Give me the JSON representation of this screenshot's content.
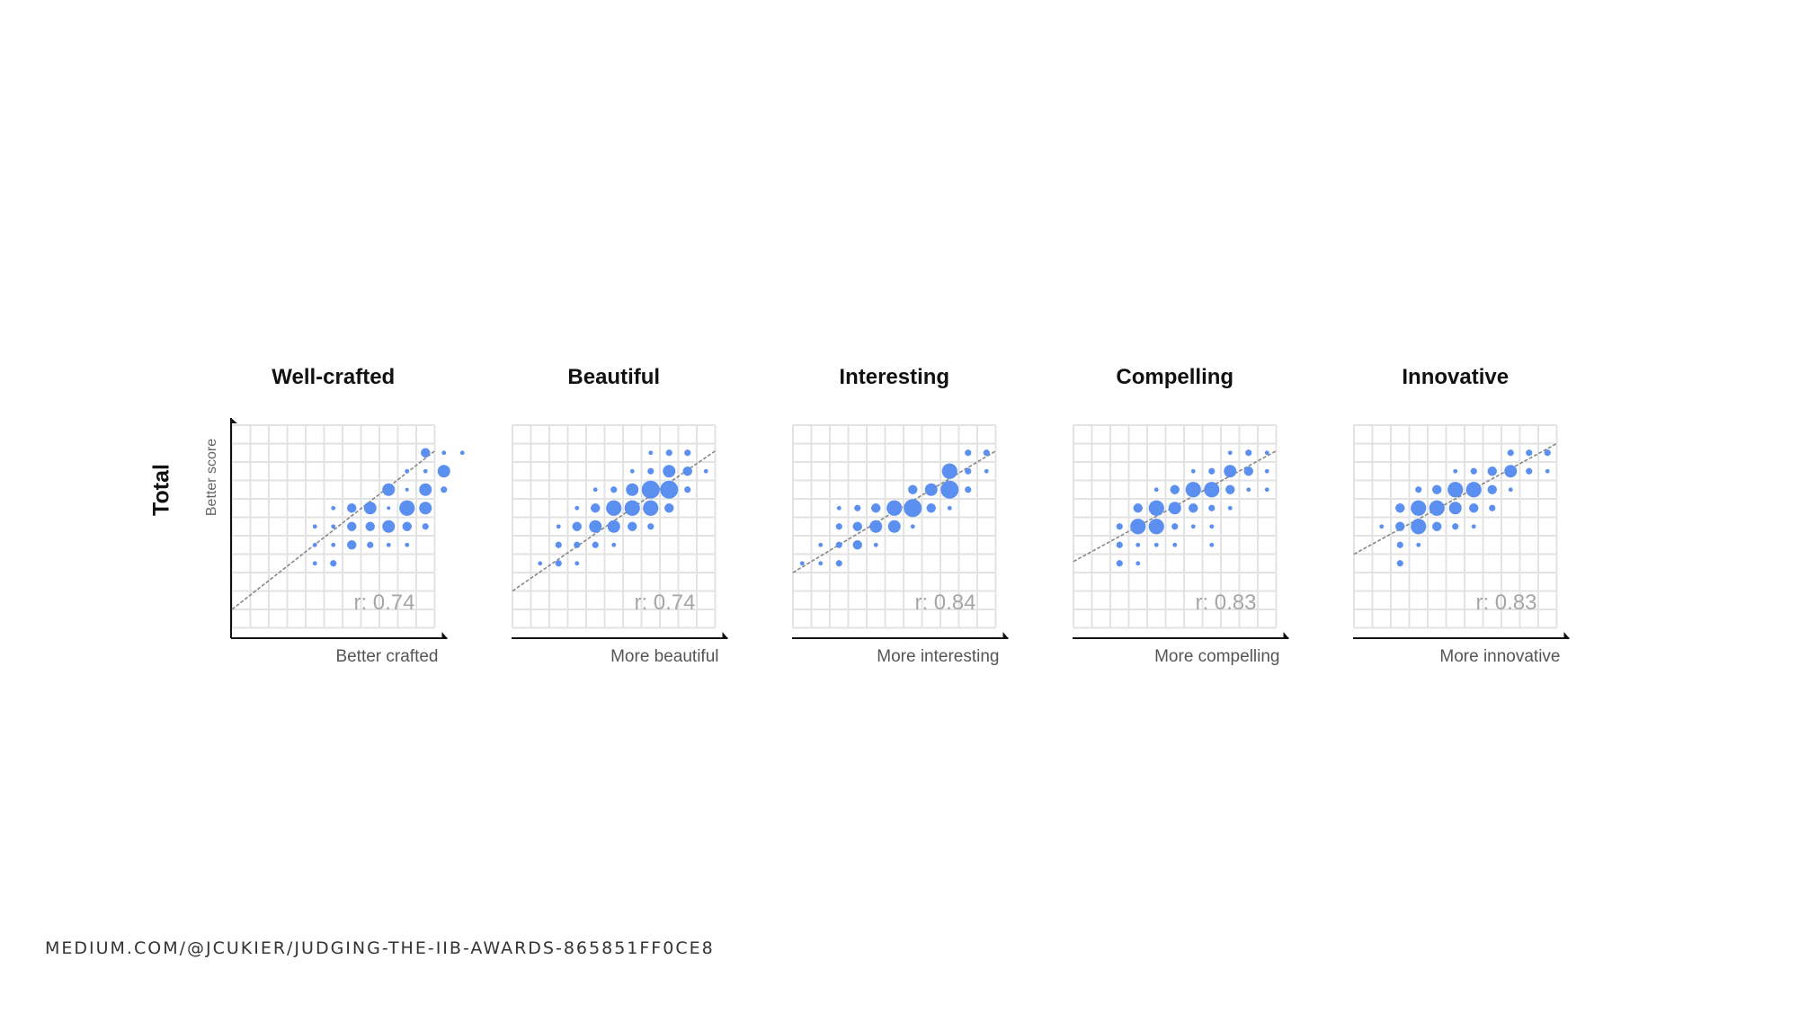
{
  "row_label": "Total",
  "source": "MEDIUM.COM/@JCUKIER/JUDGING-THE-IIB-AWARDS-865851FF0CE8",
  "colors": {
    "dot": "#5b8ff0",
    "grid": "#e3e3e3",
    "trend": "#888888",
    "axis": "#111111"
  },
  "chart_data": [
    {
      "type": "scatter",
      "title": "Well-crafted",
      "xlabel": "Better crafted",
      "ylabel": "Better score",
      "annotation": "r: 0.74",
      "grid": true,
      "trend": [
        [
          0.5,
          1.5
        ],
        [
          11.5,
          10.1
        ]
      ],
      "points": [
        [
          11,
          10,
          3
        ],
        [
          12,
          10,
          1
        ],
        [
          13,
          10,
          1
        ],
        [
          10,
          9,
          1
        ],
        [
          11,
          9,
          1
        ],
        [
          12,
          9,
          4
        ],
        [
          9,
          8,
          4
        ],
        [
          10,
          8,
          7
        ],
        [
          11,
          8,
          4
        ],
        [
          12,
          8,
          2
        ],
        [
          6,
          7,
          1
        ],
        [
          7,
          7,
          3
        ],
        [
          8,
          7,
          4
        ],
        [
          9,
          7,
          7
        ],
        [
          10,
          7,
          5
        ],
        [
          11,
          7,
          4
        ],
        [
          5,
          6,
          1
        ],
        [
          6,
          6,
          1
        ],
        [
          7,
          6,
          3
        ],
        [
          8,
          6,
          3
        ],
        [
          9,
          6,
          4
        ],
        [
          10,
          6,
          3
        ],
        [
          11,
          6,
          2
        ],
        [
          5,
          5,
          1
        ],
        [
          6,
          5,
          1
        ],
        [
          7,
          5,
          3
        ],
        [
          8,
          5,
          2
        ],
        [
          9,
          5,
          1
        ],
        [
          10,
          5,
          1
        ],
        [
          5,
          4,
          1
        ],
        [
          6,
          4,
          2
        ]
      ]
    },
    {
      "type": "scatter",
      "title": "Beautiful",
      "xlabel": "More beautiful",
      "ylabel": "",
      "annotation": "r: 0.74",
      "grid": true,
      "trend": [
        [
          0.5,
          2.5
        ],
        [
          11.5,
          10.1
        ]
      ],
      "points": [
        [
          8,
          10,
          1
        ],
        [
          9,
          10,
          2
        ],
        [
          10,
          10,
          2
        ],
        [
          7,
          9,
          1
        ],
        [
          8,
          9,
          2
        ],
        [
          9,
          9,
          4
        ],
        [
          10,
          9,
          3
        ],
        [
          11,
          9,
          1
        ],
        [
          5,
          8,
          1
        ],
        [
          6,
          8,
          2
        ],
        [
          7,
          8,
          4
        ],
        [
          8,
          8,
          6
        ],
        [
          9,
          8,
          6
        ],
        [
          10,
          8,
          2
        ],
        [
          4,
          7,
          1
        ],
        [
          5,
          7,
          3
        ],
        [
          6,
          7,
          5
        ],
        [
          7,
          7,
          5
        ],
        [
          8,
          7,
          5
        ],
        [
          9,
          7,
          3
        ],
        [
          3,
          6,
          1
        ],
        [
          4,
          6,
          3
        ],
        [
          5,
          6,
          4
        ],
        [
          6,
          6,
          4
        ],
        [
          7,
          6,
          3
        ],
        [
          8,
          6,
          2
        ],
        [
          3,
          5,
          2
        ],
        [
          4,
          5,
          2
        ],
        [
          5,
          5,
          2
        ],
        [
          6,
          5,
          1
        ],
        [
          2,
          4,
          1
        ],
        [
          3,
          4,
          2
        ],
        [
          4,
          4,
          1
        ]
      ]
    },
    {
      "type": "scatter",
      "title": "Interesting",
      "xlabel": "More interesting",
      "ylabel": "",
      "annotation": "r: 0.84",
      "grid": true,
      "trend": [
        [
          0.5,
          3.5
        ],
        [
          11.5,
          10.1
        ]
      ],
      "points": [
        [
          10,
          10,
          2
        ],
        [
          11,
          10,
          2
        ],
        [
          9,
          9,
          5
        ],
        [
          10,
          9,
          2
        ],
        [
          11,
          9,
          1
        ],
        [
          7,
          8,
          3
        ],
        [
          8,
          8,
          4
        ],
        [
          9,
          8,
          6
        ],
        [
          10,
          8,
          2
        ],
        [
          3,
          7,
          1
        ],
        [
          4,
          7,
          2
        ],
        [
          5,
          7,
          3
        ],
        [
          6,
          7,
          5
        ],
        [
          7,
          7,
          6
        ],
        [
          8,
          7,
          3
        ],
        [
          9,
          7,
          1
        ],
        [
          3,
          6,
          2
        ],
        [
          4,
          6,
          3
        ],
        [
          5,
          6,
          4
        ],
        [
          6,
          6,
          4
        ],
        [
          7,
          6,
          1
        ],
        [
          2,
          5,
          1
        ],
        [
          3,
          5,
          2
        ],
        [
          4,
          5,
          3
        ],
        [
          5,
          5,
          1
        ],
        [
          1,
          4,
          1
        ],
        [
          2,
          4,
          1
        ],
        [
          3,
          4,
          2
        ]
      ]
    },
    {
      "type": "scatter",
      "title": "Compelling",
      "xlabel": "More compelling",
      "ylabel": "",
      "annotation": "r: 0.83",
      "grid": true,
      "trend": [
        [
          0.5,
          4.1
        ],
        [
          11.5,
          10.1
        ]
      ],
      "points": [
        [
          9,
          10,
          1
        ],
        [
          10,
          10,
          2
        ],
        [
          11,
          10,
          1
        ],
        [
          7,
          9,
          1
        ],
        [
          8,
          9,
          2
        ],
        [
          9,
          9,
          4
        ],
        [
          10,
          9,
          3
        ],
        [
          11,
          9,
          1
        ],
        [
          5,
          8,
          1
        ],
        [
          6,
          8,
          3
        ],
        [
          7,
          8,
          5
        ],
        [
          8,
          8,
          5
        ],
        [
          9,
          8,
          3
        ],
        [
          10,
          8,
          1
        ],
        [
          11,
          8,
          1
        ],
        [
          4,
          7,
          3
        ],
        [
          5,
          7,
          5
        ],
        [
          6,
          7,
          4
        ],
        [
          7,
          7,
          3
        ],
        [
          8,
          7,
          2
        ],
        [
          9,
          7,
          1
        ],
        [
          3,
          6,
          2
        ],
        [
          4,
          6,
          5
        ],
        [
          5,
          6,
          5
        ],
        [
          6,
          6,
          2
        ],
        [
          7,
          6,
          1
        ],
        [
          8,
          6,
          1
        ],
        [
          3,
          5,
          2
        ],
        [
          4,
          5,
          1
        ],
        [
          5,
          5,
          1
        ],
        [
          6,
          5,
          1
        ],
        [
          8,
          5,
          1
        ],
        [
          3,
          4,
          2
        ],
        [
          4,
          4,
          1
        ]
      ]
    },
    {
      "type": "scatter",
      "title": "Innovative",
      "xlabel": "More innovative",
      "ylabel": "",
      "annotation": "r: 0.83",
      "grid": true,
      "trend": [
        [
          0.5,
          4.5
        ],
        [
          11.5,
          10.5
        ]
      ],
      "points": [
        [
          9,
          10,
          2
        ],
        [
          10,
          10,
          2
        ],
        [
          11,
          10,
          2
        ],
        [
          6,
          9,
          1
        ],
        [
          7,
          9,
          2
        ],
        [
          8,
          9,
          3
        ],
        [
          9,
          9,
          4
        ],
        [
          10,
          9,
          2
        ],
        [
          11,
          9,
          1
        ],
        [
          4,
          8,
          2
        ],
        [
          5,
          8,
          3
        ],
        [
          6,
          8,
          5
        ],
        [
          7,
          8,
          5
        ],
        [
          8,
          8,
          3
        ],
        [
          9,
          8,
          1
        ],
        [
          3,
          7,
          3
        ],
        [
          4,
          7,
          5
        ],
        [
          5,
          7,
          5
        ],
        [
          6,
          7,
          4
        ],
        [
          7,
          7,
          3
        ],
        [
          8,
          7,
          2
        ],
        [
          2,
          6,
          1
        ],
        [
          3,
          6,
          3
        ],
        [
          4,
          6,
          5
        ],
        [
          5,
          6,
          3
        ],
        [
          6,
          6,
          2
        ],
        [
          7,
          6,
          1
        ],
        [
          3,
          5,
          2
        ],
        [
          4,
          5,
          1
        ],
        [
          3,
          4,
          2
        ]
      ]
    }
  ]
}
